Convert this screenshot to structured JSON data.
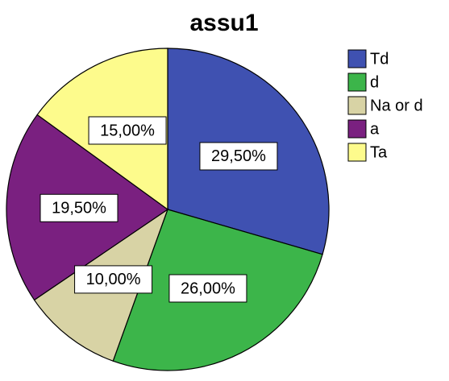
{
  "chart_data": {
    "type": "pie",
    "title": "assu1",
    "categories": [
      "Td",
      "d",
      "Na or d",
      "a",
      "Ta"
    ],
    "values": [
      29.5,
      26,
      10,
      19.5,
      15
    ],
    "value_labels": [
      "29,50%",
      "26,00%",
      "10,00%",
      "19,50%",
      "15,00%"
    ],
    "colors": [
      "#3f51b1",
      "#3cb54a",
      "#d8d3a5",
      "#7a2080",
      "#fdfb8c"
    ],
    "legend": "right"
  }
}
